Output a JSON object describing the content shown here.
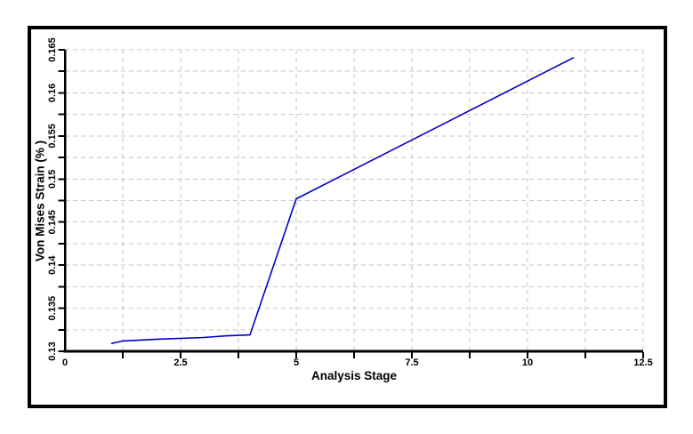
{
  "chart_data": {
    "type": "line",
    "title": "",
    "xlabel": "Analysis Stage",
    "ylabel": "Von Mises Strain (% )",
    "xlim": [
      0,
      12.5
    ],
    "ylim": [
      0.13,
      0.165
    ],
    "x_axis": {
      "tick_values": [
        0,
        2.5,
        5,
        7.5,
        10,
        12.5
      ],
      "tick_labels": [
        "0",
        "2.5",
        "5",
        "7.5",
        "10",
        "12.5"
      ],
      "minor_interval": 1.25
    },
    "y_axis": {
      "tick_values": [
        0.13,
        0.135,
        0.14,
        0.145,
        0.15,
        0.155,
        0.16,
        0.165
      ],
      "tick_labels": [
        "0.13",
        "0.135",
        "0.14",
        "0.145",
        "0.15",
        "0.155",
        "0.16",
        "0.165"
      ],
      "minor_interval": 0.0025
    },
    "grid": {
      "show": true,
      "x_interval": 1.25,
      "y_interval": 0.0025,
      "style": "dashed",
      "color": "#c6c6c6"
    },
    "legend": {
      "show": false
    },
    "series": [
      {
        "name": "Von Mises Strain",
        "color": "#0000c8",
        "width": 1.6,
        "x": [
          1,
          1.25,
          2,
          3,
          3.5,
          4,
          5,
          11
        ],
        "y": [
          0.1309,
          0.1312,
          0.1314,
          0.1316,
          0.1318,
          0.1319,
          0.1477,
          0.1641
        ]
      }
    ],
    "colors": {
      "axis": "#000000",
      "text": "#000000",
      "frame": "#000000",
      "background": "#ffffff"
    }
  }
}
